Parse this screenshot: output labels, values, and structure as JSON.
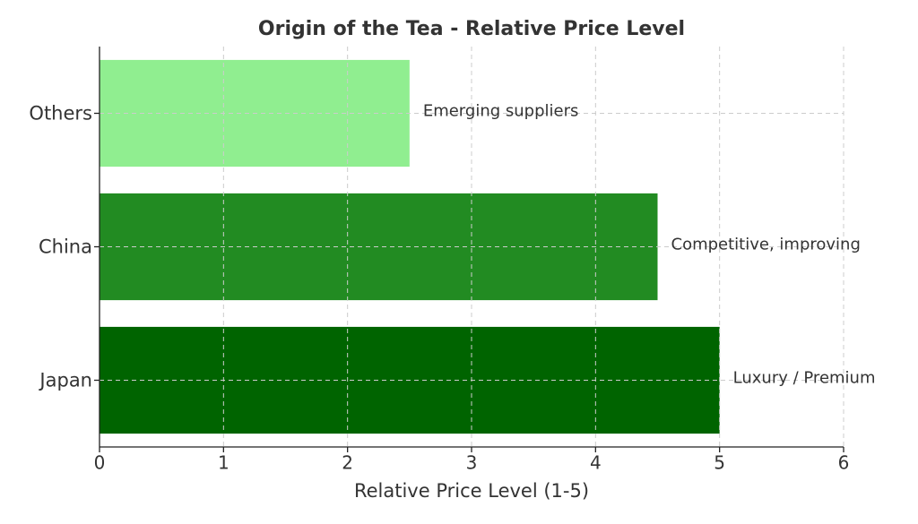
{
  "chart_data": {
    "type": "barh",
    "title": "Origin of the Tea - Relative Price Level",
    "xlabel": "Relative Price Level (1-5)",
    "categories": [
      "Japan",
      "China",
      "Others"
    ],
    "values": [
      5,
      4.5,
      2.5
    ],
    "colors": [
      "#006400",
      "#228b22",
      "#90ee90"
    ],
    "annotations": [
      "Luxury / Premium",
      "Competitive, improving",
      "Emerging suppliers"
    ],
    "xlim": [
      0,
      6
    ],
    "xticks": [
      0,
      1,
      2,
      3,
      4,
      5,
      6
    ],
    "grid": true
  }
}
